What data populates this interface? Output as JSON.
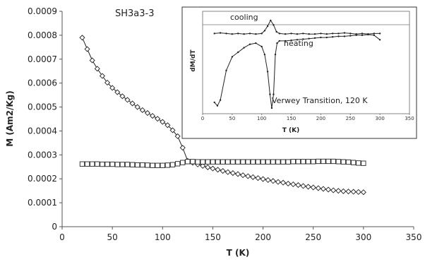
{
  "chart_data": [
    {
      "type": "line",
      "title": "SH3a3-3",
      "xlabel": "T (K)",
      "ylabel": "M (Am2/Kg)",
      "xlim": [
        0,
        350
      ],
      "ylim": [
        0,
        0.0009
      ],
      "x_ticks": [
        "0",
        "50",
        "100",
        "150",
        "200",
        "250",
        "300",
        "350"
      ],
      "y_ticks": [
        "0",
        "0.0001",
        "0.0002",
        "0.0003",
        "0.0004",
        "0.0005",
        "0.0006",
        "0.0007",
        "0.0008",
        "0.0009"
      ],
      "grid": false,
      "series": [
        {
          "marker": "diamond",
          "x": [
            20,
            25,
            30,
            35,
            40,
            45,
            50,
            55,
            60,
            65,
            70,
            75,
            80,
            85,
            90,
            95,
            100,
            105,
            110,
            115,
            120,
            125,
            130,
            135,
            140,
            145,
            150,
            155,
            160,
            165,
            170,
            175,
            180,
            185,
            190,
            195,
            200,
            205,
            210,
            215,
            220,
            225,
            230,
            235,
            240,
            245,
            250,
            255,
            260,
            265,
            270,
            275,
            280,
            285,
            290,
            295,
            300
          ],
          "values": [
            0.00079,
            0.000742,
            0.000695,
            0.00066,
            0.00063,
            0.000602,
            0.00058,
            0.000562,
            0.000545,
            0.00053,
            0.000515,
            0.0005,
            0.000487,
            0.000475,
            0.000463,
            0.000451,
            0.000438,
            0.000424,
            0.000403,
            0.000378,
            0.00033,
            0.000275,
            0.000267,
            0.00026,
            0.000254,
            0.000248,
            0.000243,
            0.000238,
            0.000233,
            0.000228,
            0.000224,
            0.00022,
            0.000215,
            0.000211,
            0.000207,
            0.000203,
            0.000199,
            0.000195,
            0.000191,
            0.000187,
            0.000184,
            0.00018,
            0.000177,
            0.000174,
            0.00017,
            0.000167,
            0.000164,
            0.000161,
            0.000158,
            0.000155,
            0.000152,
            0.00015,
            0.000148,
            0.000147,
            0.000146,
            0.000145,
            0.000144
          ]
        },
        {
          "marker": "square",
          "x": [
            20,
            25,
            30,
            35,
            40,
            45,
            50,
            55,
            60,
            65,
            70,
            75,
            80,
            85,
            90,
            95,
            100,
            105,
            110,
            115,
            120,
            125,
            130,
            135,
            140,
            145,
            150,
            155,
            160,
            165,
            170,
            175,
            180,
            185,
            190,
            195,
            200,
            205,
            210,
            215,
            220,
            225,
            230,
            235,
            240,
            245,
            250,
            255,
            260,
            265,
            270,
            275,
            280,
            285,
            290,
            295,
            300
          ],
          "values": [
            0.000262,
            0.000262,
            0.000262,
            0.000262,
            0.000261,
            0.000261,
            0.000261,
            0.00026,
            0.00026,
            0.00026,
            0.000259,
            0.000258,
            0.000258,
            0.000257,
            0.000256,
            0.000256,
            0.000256,
            0.000257,
            0.000259,
            0.000263,
            0.000268,
            0.000272,
            0.000272,
            0.000271,
            0.000271,
            0.000271,
            0.000271,
            0.000271,
            0.000271,
            0.000271,
            0.000271,
            0.000271,
            0.000271,
            0.000271,
            0.000271,
            0.000271,
            0.000271,
            0.000271,
            0.000271,
            0.000271,
            0.000271,
            0.000271,
            0.000272,
            0.000272,
            0.000272,
            0.000272,
            0.000272,
            0.000273,
            0.000273,
            0.000273,
            0.000273,
            0.000272,
            0.000271,
            0.00027,
            0.000268,
            0.000266,
            0.000265
          ]
        }
      ]
    },
    {
      "type": "line",
      "title": "",
      "xlabel": "T (K)",
      "ylabel": "dM/dT",
      "xlim": [
        0,
        350
      ],
      "x_ticks": [
        "0",
        "50",
        "100",
        "150",
        "200",
        "250",
        "300",
        "350"
      ],
      "ylim": [
        -7,
        2
      ],
      "y_ticks_visible": false,
      "reference_line": 0,
      "annotations": [
        "cooling",
        "heating",
        "Verwey Transition, 120 K"
      ],
      "series": [
        {
          "name": "cooling",
          "x": [
            20,
            30,
            40,
            50,
            60,
            70,
            80,
            90,
            100,
            105,
            110,
            115,
            120,
            125,
            130,
            140,
            150,
            160,
            170,
            180,
            190,
            200,
            210,
            220,
            230,
            240,
            250,
            260,
            270,
            280,
            290,
            300
          ],
          "values": [
            0.05,
            0.1,
            0.05,
            0.0,
            0.05,
            0.0,
            0.05,
            0.0,
            0.05,
            0.3,
            0.7,
            1.2,
            0.8,
            0.2,
            0.05,
            0.0,
            0.05,
            0.0,
            0.05,
            0.0,
            0.0,
            0.05,
            0.0,
            0.05,
            0.05,
            0.1,
            0.05,
            0.0,
            0.05,
            0.0,
            0.05,
            0.05
          ]
        },
        {
          "name": "heating",
          "x": [
            20,
            25,
            30,
            40,
            50,
            60,
            70,
            80,
            90,
            100,
            105,
            110,
            114,
            117,
            120,
            123,
            126,
            130,
            140,
            150,
            160,
            170,
            180,
            190,
            200,
            210,
            220,
            230,
            240,
            250,
            260,
            270,
            280,
            290,
            300
          ],
          "values": [
            -6.0,
            -6.3,
            -5.8,
            -3.2,
            -2.0,
            -1.6,
            -1.2,
            -0.9,
            -0.8,
            -1.1,
            -1.8,
            -3.3,
            -5.3,
            -6.5,
            -5.3,
            -1.8,
            -0.8,
            -0.6,
            -0.6,
            -0.55,
            -0.5,
            -0.45,
            -0.4,
            -0.35,
            -0.3,
            -0.3,
            -0.25,
            -0.2,
            -0.2,
            -0.15,
            -0.1,
            -0.1,
            -0.05,
            -0.1,
            -0.5
          ]
        }
      ]
    }
  ]
}
